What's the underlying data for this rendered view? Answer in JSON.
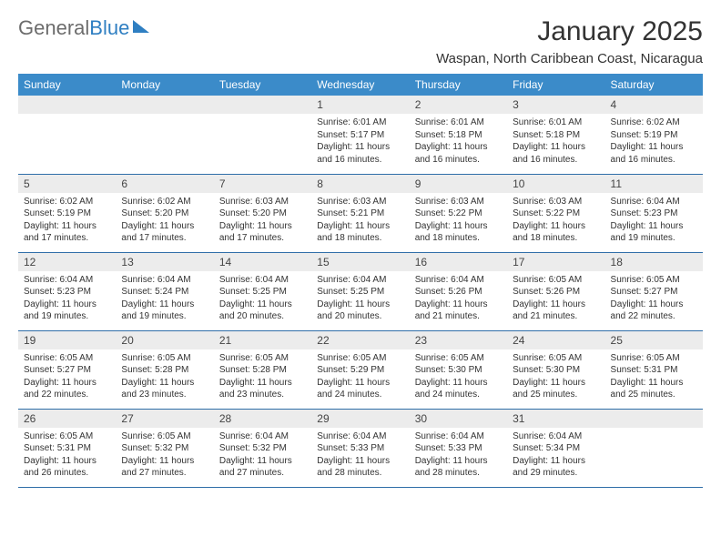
{
  "logo": {
    "part1": "General",
    "part2": "Blue"
  },
  "title": "January 2025",
  "location": "Waspan, North Caribbean Coast, Nicaragua",
  "colors": {
    "header_bg": "#3b8bc9",
    "header_text": "#ffffff",
    "daynum_bg": "#ececec",
    "row_border": "#2f6ea8",
    "logo_gray": "#6c6c6c",
    "logo_blue": "#2f7fc2"
  },
  "daysOfWeek": [
    "Sunday",
    "Monday",
    "Tuesday",
    "Wednesday",
    "Thursday",
    "Friday",
    "Saturday"
  ],
  "weeks": [
    [
      null,
      null,
      null,
      {
        "n": "1",
        "sunrise": "6:01 AM",
        "sunset": "5:17 PM",
        "daylight": "11 hours and 16 minutes."
      },
      {
        "n": "2",
        "sunrise": "6:01 AM",
        "sunset": "5:18 PM",
        "daylight": "11 hours and 16 minutes."
      },
      {
        "n": "3",
        "sunrise": "6:01 AM",
        "sunset": "5:18 PM",
        "daylight": "11 hours and 16 minutes."
      },
      {
        "n": "4",
        "sunrise": "6:02 AM",
        "sunset": "5:19 PM",
        "daylight": "11 hours and 16 minutes."
      }
    ],
    [
      {
        "n": "5",
        "sunrise": "6:02 AM",
        "sunset": "5:19 PM",
        "daylight": "11 hours and 17 minutes."
      },
      {
        "n": "6",
        "sunrise": "6:02 AM",
        "sunset": "5:20 PM",
        "daylight": "11 hours and 17 minutes."
      },
      {
        "n": "7",
        "sunrise": "6:03 AM",
        "sunset": "5:20 PM",
        "daylight": "11 hours and 17 minutes."
      },
      {
        "n": "8",
        "sunrise": "6:03 AM",
        "sunset": "5:21 PM",
        "daylight": "11 hours and 18 minutes."
      },
      {
        "n": "9",
        "sunrise": "6:03 AM",
        "sunset": "5:22 PM",
        "daylight": "11 hours and 18 minutes."
      },
      {
        "n": "10",
        "sunrise": "6:03 AM",
        "sunset": "5:22 PM",
        "daylight": "11 hours and 18 minutes."
      },
      {
        "n": "11",
        "sunrise": "6:04 AM",
        "sunset": "5:23 PM",
        "daylight": "11 hours and 19 minutes."
      }
    ],
    [
      {
        "n": "12",
        "sunrise": "6:04 AM",
        "sunset": "5:23 PM",
        "daylight": "11 hours and 19 minutes."
      },
      {
        "n": "13",
        "sunrise": "6:04 AM",
        "sunset": "5:24 PM",
        "daylight": "11 hours and 19 minutes."
      },
      {
        "n": "14",
        "sunrise": "6:04 AM",
        "sunset": "5:25 PM",
        "daylight": "11 hours and 20 minutes."
      },
      {
        "n": "15",
        "sunrise": "6:04 AM",
        "sunset": "5:25 PM",
        "daylight": "11 hours and 20 minutes."
      },
      {
        "n": "16",
        "sunrise": "6:04 AM",
        "sunset": "5:26 PM",
        "daylight": "11 hours and 21 minutes."
      },
      {
        "n": "17",
        "sunrise": "6:05 AM",
        "sunset": "5:26 PM",
        "daylight": "11 hours and 21 minutes."
      },
      {
        "n": "18",
        "sunrise": "6:05 AM",
        "sunset": "5:27 PM",
        "daylight": "11 hours and 22 minutes."
      }
    ],
    [
      {
        "n": "19",
        "sunrise": "6:05 AM",
        "sunset": "5:27 PM",
        "daylight": "11 hours and 22 minutes."
      },
      {
        "n": "20",
        "sunrise": "6:05 AM",
        "sunset": "5:28 PM",
        "daylight": "11 hours and 23 minutes."
      },
      {
        "n": "21",
        "sunrise": "6:05 AM",
        "sunset": "5:28 PM",
        "daylight": "11 hours and 23 minutes."
      },
      {
        "n": "22",
        "sunrise": "6:05 AM",
        "sunset": "5:29 PM",
        "daylight": "11 hours and 24 minutes."
      },
      {
        "n": "23",
        "sunrise": "6:05 AM",
        "sunset": "5:30 PM",
        "daylight": "11 hours and 24 minutes."
      },
      {
        "n": "24",
        "sunrise": "6:05 AM",
        "sunset": "5:30 PM",
        "daylight": "11 hours and 25 minutes."
      },
      {
        "n": "25",
        "sunrise": "6:05 AM",
        "sunset": "5:31 PM",
        "daylight": "11 hours and 25 minutes."
      }
    ],
    [
      {
        "n": "26",
        "sunrise": "6:05 AM",
        "sunset": "5:31 PM",
        "daylight": "11 hours and 26 minutes."
      },
      {
        "n": "27",
        "sunrise": "6:05 AM",
        "sunset": "5:32 PM",
        "daylight": "11 hours and 27 minutes."
      },
      {
        "n": "28",
        "sunrise": "6:04 AM",
        "sunset": "5:32 PM",
        "daylight": "11 hours and 27 minutes."
      },
      {
        "n": "29",
        "sunrise": "6:04 AM",
        "sunset": "5:33 PM",
        "daylight": "11 hours and 28 minutes."
      },
      {
        "n": "30",
        "sunrise": "6:04 AM",
        "sunset": "5:33 PM",
        "daylight": "11 hours and 28 minutes."
      },
      {
        "n": "31",
        "sunrise": "6:04 AM",
        "sunset": "5:34 PM",
        "daylight": "11 hours and 29 minutes."
      },
      null
    ]
  ],
  "labels": {
    "sunrise": "Sunrise:",
    "sunset": "Sunset:",
    "daylight": "Daylight:"
  }
}
